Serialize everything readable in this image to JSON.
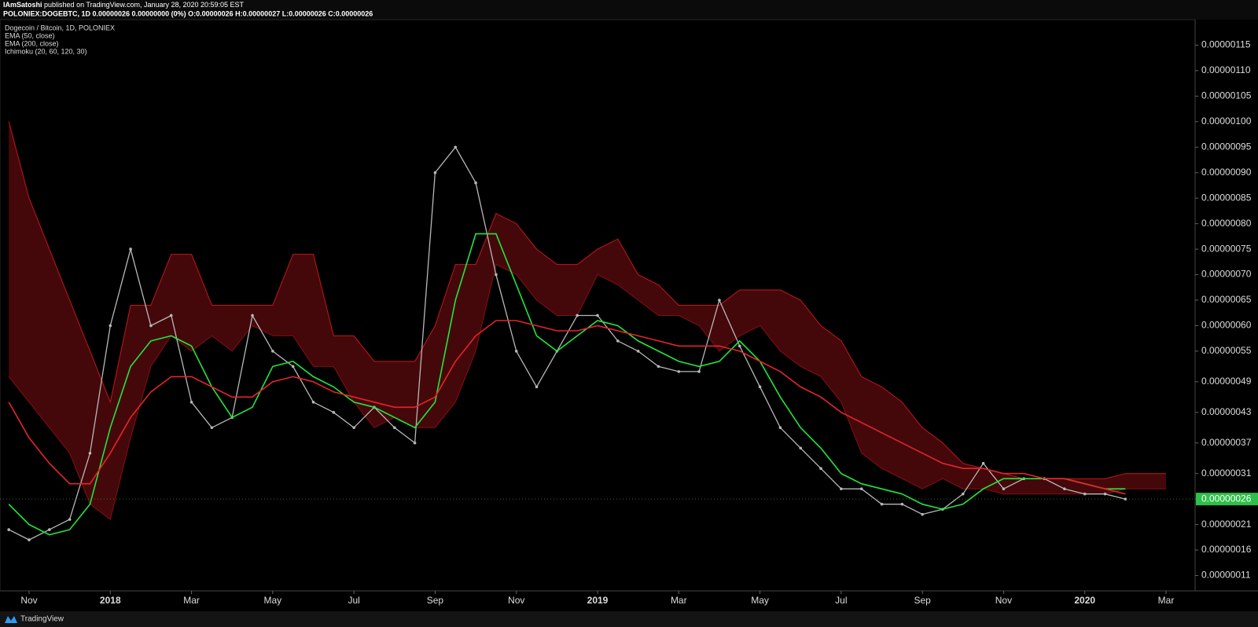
{
  "header": {
    "author": "IAmSatoshi",
    "published": "published on TradingView.com, January 28, 2020 20:59:05 EST",
    "ohlc": "POLONIEX:DOGEBTC, 1D 0.00000026 0.00000000 (0%) O:0.00000026 H:0.00000027 L:0.00000026 C:0.00000026"
  },
  "footer": {
    "brand": "TradingView"
  },
  "chart_data": {
    "type": "line",
    "title": "Dogecoin / Bitcoin, 1D, POLONIEX",
    "categories": [
      null,
      "Nov",
      null,
      null,
      null,
      "2018",
      null,
      null,
      null,
      "Mar",
      null,
      null,
      null,
      "May",
      null,
      null,
      null,
      "Jul",
      null,
      null,
      null,
      "Sep",
      null,
      null,
      null,
      "Nov",
      null,
      null,
      null,
      "2019",
      null,
      null,
      null,
      "Mar",
      null,
      null,
      null,
      "May",
      null,
      null,
      null,
      "Jul",
      null,
      null,
      null,
      "Sep",
      null,
      null,
      null,
      "Nov",
      null,
      null,
      null,
      "2020",
      null,
      null,
      null,
      "Mar"
    ],
    "color": "#b8b8b8",
    "values": [
      2e-07,
      1.8e-07,
      2e-07,
      2.2e-07,
      3.5e-07,
      6e-07,
      7.5e-07,
      6e-07,
      6.2e-07,
      4.5e-07,
      4e-07,
      4.2e-07,
      6.2e-07,
      5.5e-07,
      5.2e-07,
      4.5e-07,
      4.3e-07,
      4e-07,
      4.4e-07,
      4e-07,
      3.7e-07,
      9e-07,
      9.5e-07,
      8.8e-07,
      7e-07,
      5.5e-07,
      4.8e-07,
      5.5e-07,
      6.2e-07,
      6.2e-07,
      5.7e-07,
      5.5e-07,
      5.2e-07,
      5.1e-07,
      5.1e-07,
      6.5e-07,
      5.6e-07,
      4.8e-07,
      4e-07,
      3.6e-07,
      3.2e-07,
      2.8e-07,
      2.8e-07,
      2.5e-07,
      2.5e-07,
      2.3e-07,
      2.4e-07,
      2.7e-07,
      3.3e-07,
      2.8e-07,
      3e-07,
      3e-07,
      2.8e-07,
      2.7e-07,
      2.7e-07,
      2.6e-07,
      null,
      null
    ],
    "series": [
      {
        "name": "EMA (50, close)",
        "color": "#22e63a",
        "values": [
          2.5e-07,
          2.1e-07,
          1.9e-07,
          2e-07,
          2.5e-07,
          4e-07,
          5.2e-07,
          5.7e-07,
          5.8e-07,
          5.6e-07,
          4.8e-07,
          4.2e-07,
          4.4e-07,
          5.2e-07,
          5.3e-07,
          5e-07,
          4.8e-07,
          4.5e-07,
          4.4e-07,
          4.2e-07,
          4e-07,
          4.5e-07,
          6.5e-07,
          7.8e-07,
          7.8e-07,
          6.8e-07,
          5.8e-07,
          5.5e-07,
          5.8e-07,
          6.1e-07,
          6e-07,
          5.7e-07,
          5.5e-07,
          5.3e-07,
          5.2e-07,
          5.3e-07,
          5.7e-07,
          5.3e-07,
          4.6e-07,
          4e-07,
          3.6e-07,
          3.1e-07,
          2.9e-07,
          2.8e-07,
          2.7e-07,
          2.5e-07,
          2.4e-07,
          2.5e-07,
          2.8e-07,
          3e-07,
          3e-07,
          3e-07,
          3e-07,
          2.9e-07,
          2.8e-07,
          2.8e-07,
          null,
          null
        ]
      },
      {
        "name": "EMA (200, close)",
        "color": "#e8232a",
        "values": [
          4.5e-07,
          3.8e-07,
          3.3e-07,
          2.9e-07,
          2.9e-07,
          3.5e-07,
          4.2e-07,
          4.7e-07,
          5e-07,
          5e-07,
          4.8e-07,
          4.6e-07,
          4.6e-07,
          4.9e-07,
          5e-07,
          4.9e-07,
          4.7e-07,
          4.6e-07,
          4.5e-07,
          4.4e-07,
          4.4e-07,
          4.6e-07,
          5.3e-07,
          5.8e-07,
          6.1e-07,
          6.1e-07,
          6e-07,
          5.9e-07,
          5.9e-07,
          6e-07,
          5.9e-07,
          5.8e-07,
          5.7e-07,
          5.6e-07,
          5.6e-07,
          5.6e-07,
          5.5e-07,
          5.3e-07,
          5.1e-07,
          4.8e-07,
          4.6e-07,
          4.3e-07,
          4.1e-07,
          3.9e-07,
          3.7e-07,
          3.5e-07,
          3.3e-07,
          3.2e-07,
          3.2e-07,
          3.1e-07,
          3.1e-07,
          3e-07,
          3e-07,
          2.9e-07,
          2.8e-07,
          2.7e-07,
          null,
          null
        ]
      }
    ],
    "cloud": {
      "name": "Ichimoku (20, 60, 120, 30)",
      "color": "#c4161c",
      "top": [
        1e-06,
        8.5e-07,
        7.5e-07,
        6.5e-07,
        5.5e-07,
        4.5e-07,
        6.4e-07,
        6.4e-07,
        7.4e-07,
        7.4e-07,
        6.4e-07,
        6.4e-07,
        6.4e-07,
        6.4e-07,
        7.4e-07,
        7.4e-07,
        5.8e-07,
        5.8e-07,
        5.3e-07,
        5.3e-07,
        5.3e-07,
        6e-07,
        7.2e-07,
        7.2e-07,
        8.2e-07,
        8e-07,
        7.5e-07,
        7.2e-07,
        7.2e-07,
        7.5e-07,
        7.7e-07,
        7e-07,
        6.8e-07,
        6.4e-07,
        6.4e-07,
        6.4e-07,
        6.7e-07,
        6.7e-07,
        6.7e-07,
        6.5e-07,
        6e-07,
        5.7e-07,
        5e-07,
        4.8e-07,
        4.5e-07,
        4e-07,
        3.7e-07,
        3.3e-07,
        3.2e-07,
        3.1e-07,
        3e-07,
        3e-07,
        3e-07,
        3e-07,
        3e-07,
        3.1e-07,
        3.1e-07,
        3.1e-07
      ],
      "bottom": [
        5e-07,
        4.5e-07,
        4e-07,
        3.5e-07,
        2.5e-07,
        2.2e-07,
        3.8e-07,
        5.2e-07,
        5.8e-07,
        5.5e-07,
        5.8e-07,
        5.5e-07,
        6e-07,
        5.8e-07,
        5.8e-07,
        5.2e-07,
        5.2e-07,
        4.5e-07,
        4e-07,
        4.2e-07,
        4e-07,
        4e-07,
        4.5e-07,
        5.5e-07,
        7.2e-07,
        7e-07,
        6.5e-07,
        6.2e-07,
        6.2e-07,
        7e-07,
        6.8e-07,
        6.5e-07,
        6.2e-07,
        6.2e-07,
        6e-07,
        5.5e-07,
        5.8e-07,
        6e-07,
        5.5e-07,
        5.2e-07,
        5e-07,
        4.5e-07,
        3.5e-07,
        3.2e-07,
        3e-07,
        2.8e-07,
        3e-07,
        2.8e-07,
        2.8e-07,
        2.7e-07,
        2.7e-07,
        2.7e-07,
        2.7e-07,
        2.7e-07,
        2.7e-07,
        2.8e-07,
        2.8e-07,
        2.8e-07
      ]
    },
    "last_price": {
      "value": 2.6e-07,
      "label": "0.00000026",
      "color": "#2fbf4a"
    },
    "ylim": [
      8e-08,
      1.2e-06
    ],
    "yticks": [
      {
        "value": 1.1e-07,
        "label": "0.00000011"
      },
      {
        "value": 1.6e-07,
        "label": "0.00000016"
      },
      {
        "value": 2.1e-07,
        "label": "0.00000021"
      },
      {
        "value": 2.6e-07,
        "label": "0.00000026"
      },
      {
        "value": 3.1e-07,
        "label": "0.00000031"
      },
      {
        "value": 3.7e-07,
        "label": "0.00000037"
      },
      {
        "value": 4.3e-07,
        "label": "0.00000043"
      },
      {
        "value": 4.9e-07,
        "label": "0.00000049"
      },
      {
        "value": 5.5e-07,
        "label": "0.00000055"
      },
      {
        "value": 6e-07,
        "label": "0.00000060"
      },
      {
        "value": 6.5e-07,
        "label": "0.00000065"
      },
      {
        "value": 7e-07,
        "label": "0.00000070"
      },
      {
        "value": 7.5e-07,
        "label": "0.00000075"
      },
      {
        "value": 8e-07,
        "label": "0.00000080"
      },
      {
        "value": 8.5e-07,
        "label": "0.00000085"
      },
      {
        "value": 9e-07,
        "label": "0.00000090"
      },
      {
        "value": 9.5e-07,
        "label": "0.00000095"
      },
      {
        "value": 1e-06,
        "label": "0.00000100"
      },
      {
        "value": 1.05e-06,
        "label": "0.00000105"
      },
      {
        "value": 1.1e-06,
        "label": "0.00000110"
      },
      {
        "value": 1.15e-06,
        "label": "0.00000115"
      }
    ],
    "grid": false
  }
}
